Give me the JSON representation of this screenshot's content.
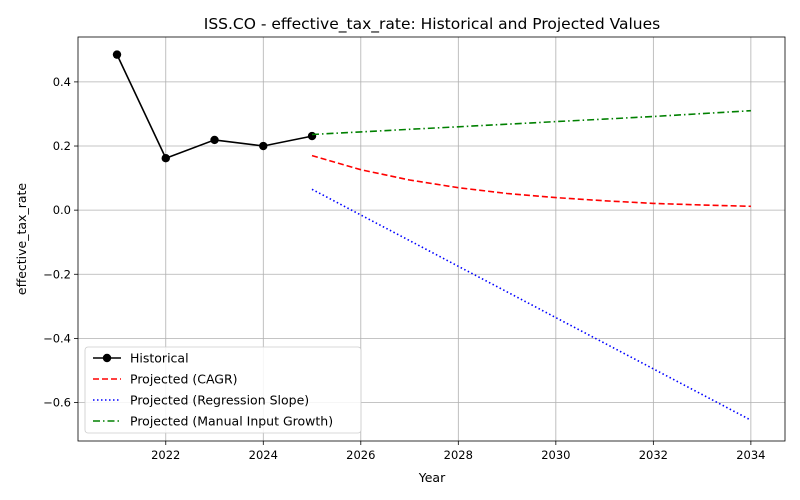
{
  "chart_data": {
    "type": "line",
    "title": "ISS.CO - effective_tax_rate: Historical and Projected Values",
    "xlabel": "Year",
    "ylabel": "effective_tax_rate",
    "xlim": [
      2020.2,
      2034.7
    ],
    "ylim": [
      -0.72,
      0.54
    ],
    "xticks": [
      2022,
      2024,
      2026,
      2028,
      2030,
      2032,
      2034
    ],
    "yticks": [
      -0.6,
      -0.4,
      -0.2,
      0.0,
      0.2,
      0.4
    ],
    "xtick_labels": [
      "2022",
      "2024",
      "2026",
      "2028",
      "2030",
      "2032",
      "2034"
    ],
    "ytick_labels": [
      "−0.6",
      "−0.4",
      "−0.2",
      "0.0",
      "0.2",
      "0.4"
    ],
    "grid": true,
    "legend_position": "lower-left",
    "series": [
      {
        "name": "Historical",
        "style": "solid-marker",
        "color": "#000000",
        "x": [
          2021,
          2022,
          2023,
          2024,
          2025
        ],
        "y": [
          0.485,
          0.162,
          0.219,
          0.2,
          0.231
        ]
      },
      {
        "name": "Projected (CAGR)",
        "style": "dashed",
        "color": "#ff0000",
        "x": [
          2025,
          2026,
          2027,
          2028,
          2029,
          2030,
          2031,
          2032,
          2033,
          2034
        ],
        "y": [
          0.17,
          0.126,
          0.094,
          0.07,
          0.052,
          0.039,
          0.029,
          0.021,
          0.016,
          0.012
        ]
      },
      {
        "name": "Projected (Regression Slope)",
        "style": "dotted",
        "color": "#0000ff",
        "x": [
          2025,
          2026,
          2027,
          2028,
          2029,
          2030,
          2031,
          2032,
          2033,
          2034
        ],
        "y": [
          0.065,
          -0.015,
          -0.095,
          -0.175,
          -0.255,
          -0.335,
          -0.415,
          -0.495,
          -0.575,
          -0.655
        ]
      },
      {
        "name": "Projected (Manual Input Growth)",
        "style": "dashdot",
        "color": "#008000",
        "x": [
          2025,
          2026,
          2027,
          2028,
          2029,
          2030,
          2031,
          2032,
          2033,
          2034
        ],
        "y": [
          0.236,
          0.244,
          0.252,
          0.26,
          0.268,
          0.276,
          0.284,
          0.292,
          0.301,
          0.31
        ]
      }
    ]
  }
}
